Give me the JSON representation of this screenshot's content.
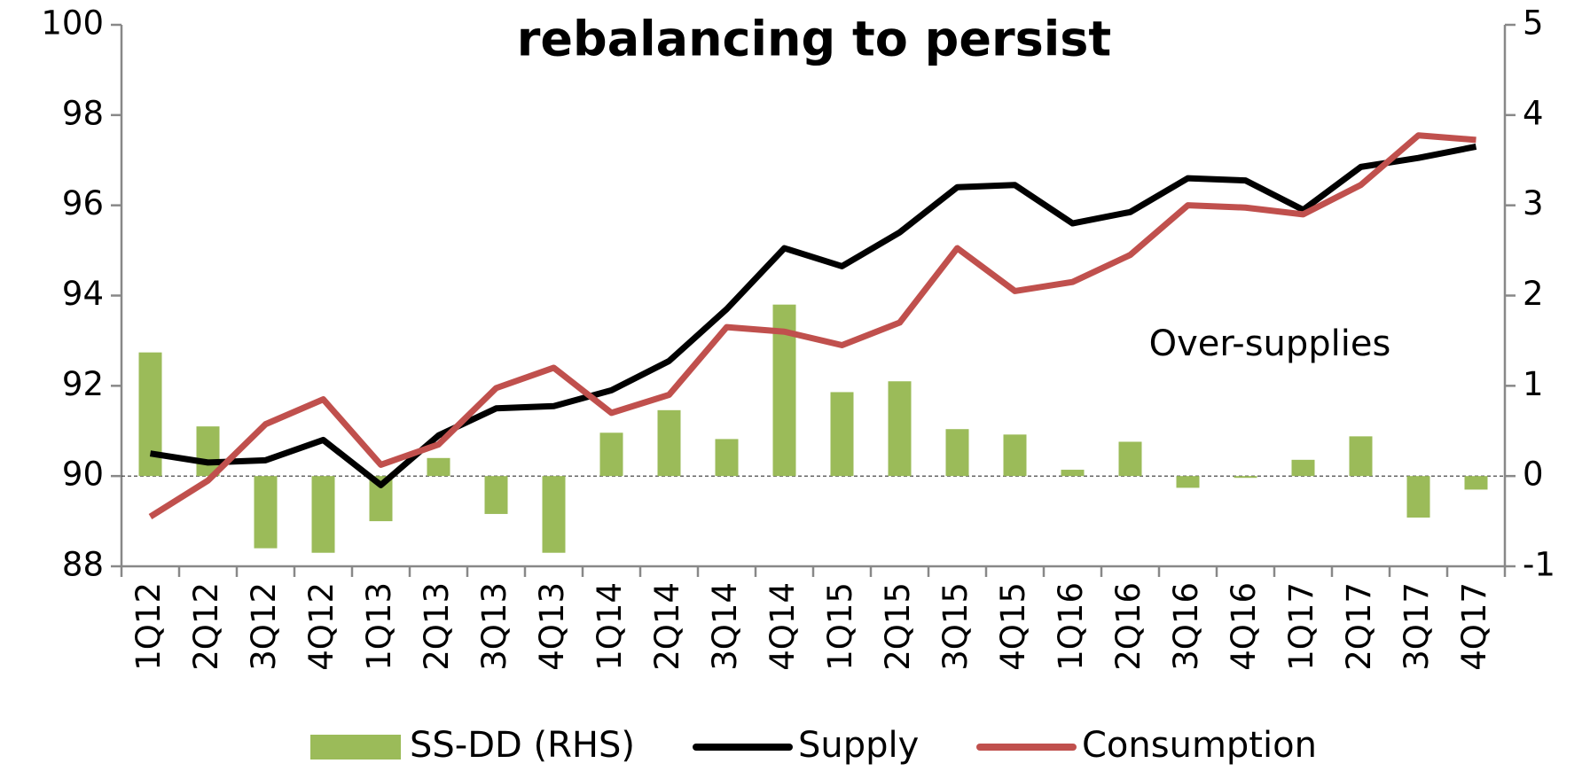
{
  "chart_data": {
    "type": "bar-line",
    "title": "rebalancing to persist",
    "annotation": "Over-supplies",
    "categories": [
      "1Q12",
      "2Q12",
      "3Q12",
      "4Q12",
      "1Q13",
      "2Q13",
      "3Q13",
      "4Q13",
      "1Q14",
      "2Q14",
      "3Q14",
      "4Q14",
      "1Q15",
      "2Q15",
      "3Q15",
      "4Q15",
      "1Q16",
      "2Q16",
      "3Q16",
      "4Q16",
      "1Q17",
      "2Q17",
      "3Q17",
      "4Q17"
    ],
    "series": [
      {
        "name": "SS-DD (RHS)",
        "type": "bar",
        "axis": "y2",
        "color": "#9bbb59",
        "values": [
          1.37,
          0.55,
          -0.8,
          -0.85,
          -0.5,
          0.2,
          -0.42,
          -0.85,
          0.48,
          0.73,
          0.41,
          1.9,
          0.93,
          1.05,
          0.52,
          0.46,
          0.07,
          0.38,
          -0.13,
          -0.02,
          0.18,
          0.44,
          -0.46,
          -0.15
        ]
      },
      {
        "name": "Supply",
        "type": "line",
        "axis": "y",
        "color": "#000000",
        "values": [
          90.5,
          90.3,
          90.35,
          90.8,
          89.8,
          90.9,
          91.5,
          91.55,
          91.9,
          92.55,
          93.7,
          95.05,
          94.65,
          95.4,
          96.4,
          96.45,
          95.6,
          95.85,
          96.6,
          96.55,
          95.9,
          96.85,
          97.05,
          97.3
        ]
      },
      {
        "name": "Consumption",
        "type": "line",
        "axis": "y",
        "color": "#c0504d",
        "values": [
          89.1,
          89.9,
          91.15,
          91.7,
          90.25,
          90.7,
          91.95,
          92.4,
          91.4,
          91.8,
          93.3,
          93.2,
          92.9,
          93.4,
          95.05,
          94.1,
          94.3,
          94.9,
          96.0,
          95.95,
          95.8,
          96.45,
          97.55,
          97.45
        ]
      }
    ],
    "ylim": [
      88,
      100
    ],
    "yticks": [
      88,
      90,
      92,
      94,
      96,
      98,
      100
    ],
    "y2lim": [
      -1,
      5
    ],
    "y2ticks": [
      -1,
      0,
      1,
      2,
      3,
      4,
      5
    ],
    "zero_line": true,
    "legend": "bottom"
  }
}
